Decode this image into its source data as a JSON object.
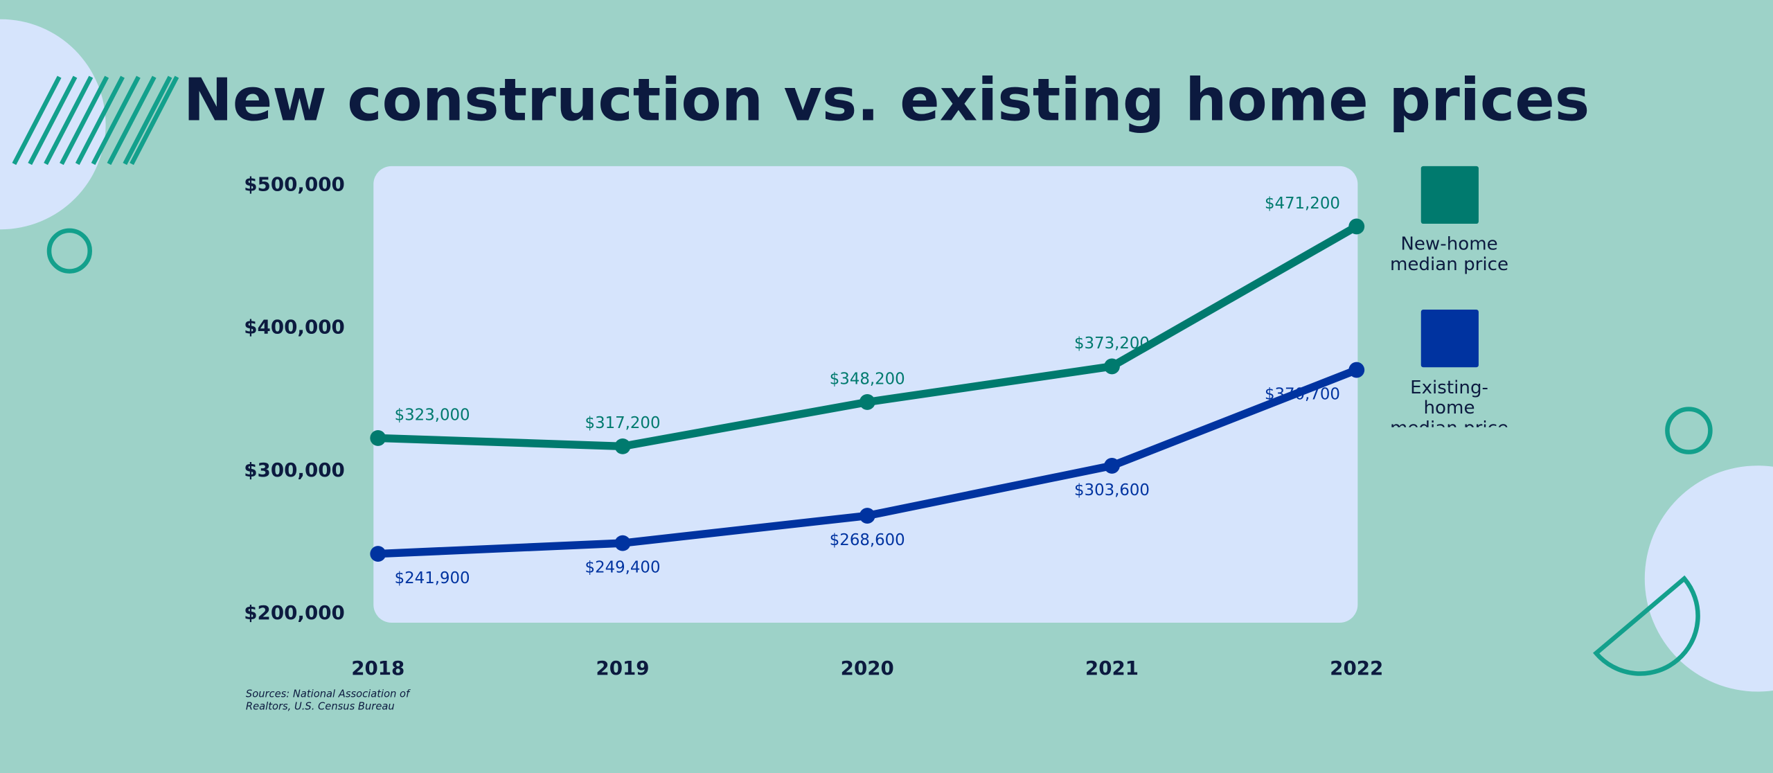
{
  "chart_data": {
    "type": "line",
    "title": "New construction vs. existing home prices",
    "categories": [
      "2018",
      "2019",
      "2020",
      "2021",
      "2022"
    ],
    "series": [
      {
        "name": "New-home median price",
        "color": "#007a6e",
        "values": [
          323000,
          317200,
          348200,
          373200,
          471200
        ],
        "value_labels": [
          "$323,000",
          "$317,200",
          "$348,200",
          "$373,200",
          "$471,200"
        ]
      },
      {
        "name": "Existing-home median price",
        "color": "#0033a0",
        "values": [
          241900,
          249400,
          268600,
          303600,
          370700
        ],
        "value_labels": [
          "$241,900",
          "$249,400",
          "$268,600",
          "$303,600",
          "$370,700"
        ]
      }
    ],
    "ylim": [
      200000,
      500000
    ],
    "yticks": [
      {
        "value": 200000,
        "label": "$200,000"
      },
      {
        "value": 300000,
        "label": "$300,000"
      },
      {
        "value": 400000,
        "label": "$400,000"
      },
      {
        "value": 500000,
        "label": "$500,000"
      }
    ],
    "legend": "right",
    "source": "Sources: National Association of Realtors, U.S. Census Bureau"
  }
}
